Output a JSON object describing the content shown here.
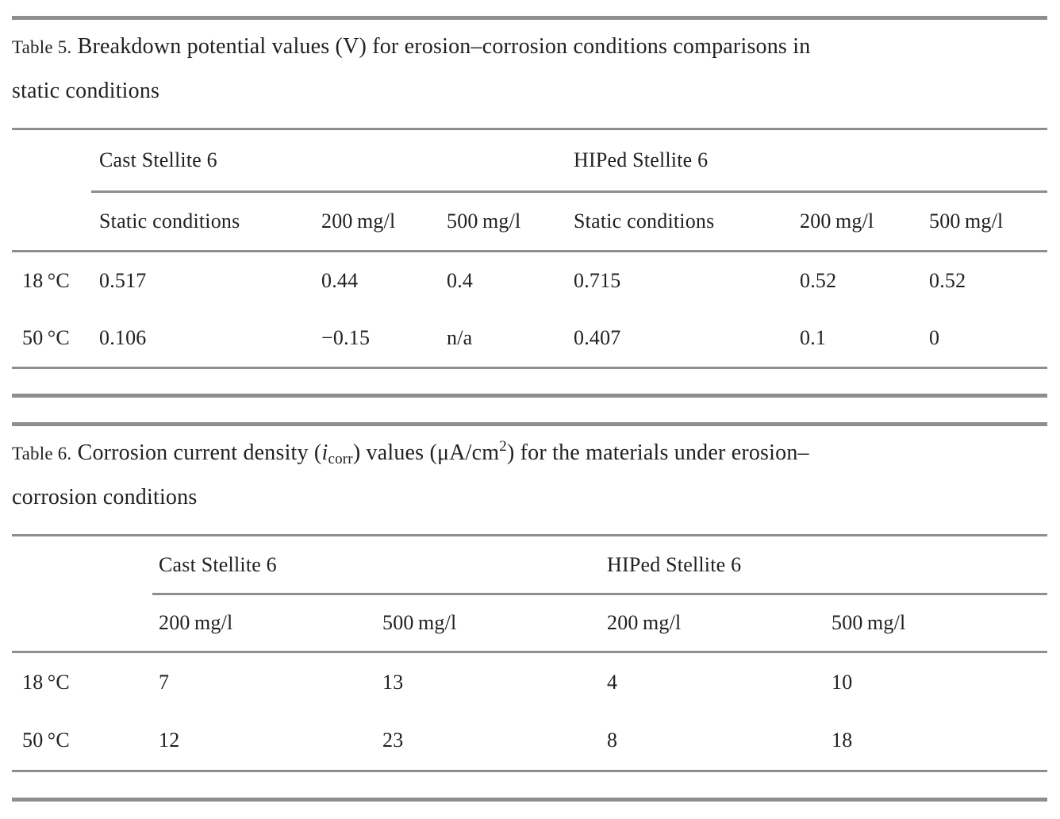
{
  "colors": {
    "text": "#222120",
    "rule_gray": "#8e8e8e",
    "background": "#ffffff"
  },
  "tables": [
    {
      "caption": {
        "label": "Table 5.",
        "line1": "Breakdown potential values (V) for erosion–corrosion conditions comparisons in",
        "line2": "static conditions"
      },
      "groups": [
        "Cast Stellite 6",
        "HIPed Stellite 6"
      ],
      "subheaders": [
        "Static conditions",
        "200 mg/l",
        "500 mg/l",
        "Static conditions",
        "200 mg/l",
        "500 mg/l"
      ],
      "rows": [
        {
          "label": "18 °C",
          "values": [
            "0.517",
            "0.44",
            "0.4",
            "0.715",
            "0.52",
            "0.52"
          ]
        },
        {
          "label": "50 °C",
          "values": [
            "0.106",
            "−0.15",
            "n/a",
            "0.407",
            "0.1",
            "0"
          ]
        }
      ]
    },
    {
      "caption": {
        "label": "Table 6.",
        "seg1": "Corrosion current density (",
        "ivar": "i",
        "isub": "corr",
        "seg2": ") values (μA/cm",
        "sup2": "2",
        "seg3": ") for the materials under erosion–",
        "line2": "corrosion conditions"
      },
      "groups": [
        "Cast Stellite 6",
        "HIPed Stellite 6"
      ],
      "subheaders": [
        "200 mg/l",
        "500 mg/l",
        "200 mg/l",
        "500 mg/l"
      ],
      "rows": [
        {
          "label": "18 °C",
          "values": [
            "7",
            "13",
            "4",
            "10"
          ]
        },
        {
          "label": "50 °C",
          "values": [
            "12",
            "23",
            "8",
            "18"
          ]
        }
      ]
    }
  ]
}
